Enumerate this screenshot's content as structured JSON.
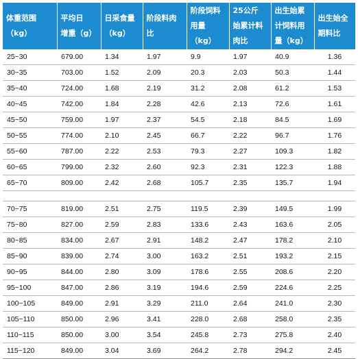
{
  "headers": [
    [
      "体重范围",
      "（kg）"
    ],
    [
      "平均日",
      "增重（g）"
    ],
    [
      "日采食量",
      "（kg）"
    ],
    [
      "阶段料肉",
      "比"
    ],
    [
      "阶段饲料",
      "用量",
      "（kg）"
    ],
    [
      "25公斤",
      "始累计料",
      "肉比"
    ],
    [
      "出生始累",
      "计饲料用",
      "量（kg）"
    ],
    [
      "出生始全",
      "期料比"
    ]
  ],
  "rows_group1": [
    [
      "25~30",
      "679.00",
      "1.34",
      "1.97",
      "9.9",
      "1.97",
      "40.9",
      "1.36"
    ],
    [
      "30~35",
      "703.00",
      "1.52",
      "2.09",
      "20.3",
      "2.03",
      "50.3",
      "1.44"
    ],
    [
      "35~40",
      "724.00",
      "1.68",
      "2.19",
      "31.2",
      "2.08",
      "61.2",
      "1.53"
    ],
    [
      "40~45",
      "742.00",
      "1.84",
      "2.28",
      "42.6",
      "2.13",
      "72.6",
      "1.61"
    ],
    [
      "45~50",
      "759.00",
      "1.97",
      "2.37",
      "54.5",
      "2.18",
      "84.5",
      "1.69"
    ],
    [
      "50~55",
      "774.00",
      "2.10",
      "2.45",
      "66.7",
      "2.22",
      "96.7",
      "1.76"
    ],
    [
      "55~60",
      "787.00",
      "2.22",
      "2.53",
      "79.3",
      "2.27",
      "109.3",
      "1.82"
    ],
    [
      "60~65",
      "799.00",
      "2.32",
      "2.60",
      "92.3",
      "2.31",
      "122.3",
      "1.88"
    ],
    [
      "65~70",
      "809.00",
      "2.42",
      "2.68",
      "105.7",
      "2.35",
      "135.7",
      "1.94"
    ]
  ],
  "rows_group2": [
    [
      "70~75",
      "819.00",
      "2.51",
      "2.75",
      "119.5",
      "2.39",
      "149.5",
      "1.99"
    ],
    [
      "75~80",
      "827.00",
      "2.59",
      "2.83",
      "133.6",
      "2.43",
      "163.6",
      "2.05"
    ],
    [
      "80~85",
      "834.00",
      "2.67",
      "2.91",
      "148.2",
      "2.47",
      "178.2",
      "2.10"
    ],
    [
      "85~90",
      "839.00",
      "2.74",
      "3.00",
      "163.2",
      "2.51",
      "193.2",
      "2.15"
    ],
    [
      "90~95",
      "844.00",
      "2.80",
      "3.09",
      "178.6",
      "2.55",
      "208.6",
      "2.20"
    ],
    [
      "95~100",
      "847.00",
      "2.86",
      "3.19",
      "194.6",
      "2.59",
      "224.6",
      "2.25"
    ],
    [
      "100~105",
      "849.00",
      "2.91",
      "3.29",
      "211.0",
      "2.64",
      "241.0",
      "2.30"
    ],
    [
      "105~110",
      "850.00",
      "2.96",
      "3.41",
      "228.0",
      "2.68",
      "258.0",
      "2.35"
    ],
    [
      "110~115",
      "850.00",
      "3.00",
      "3.54",
      "245.8",
      "2.73",
      "275.8",
      "2.40"
    ],
    [
      "115~120",
      "849.00",
      "3.04",
      "3.69",
      "264.2",
      "2.78",
      "294.2",
      "2.45"
    ]
  ]
}
